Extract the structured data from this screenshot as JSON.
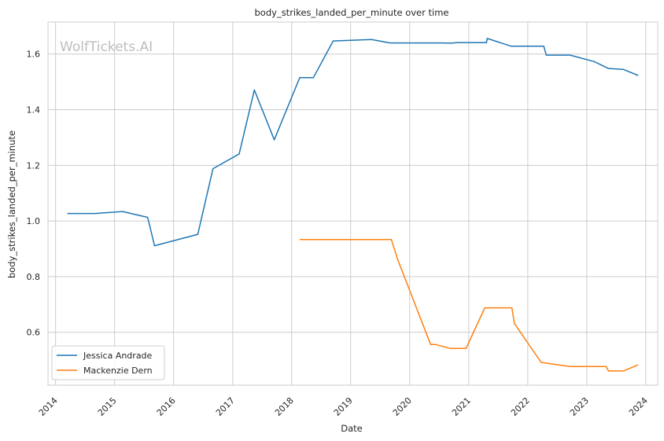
{
  "chart_data": {
    "type": "line",
    "title": "body_strikes_landed_per_minute over time",
    "xlabel": "Date",
    "ylabel": "body_strikes_landed_per_minute",
    "watermark": "WolfTickets.AI",
    "x_ticks": [
      "2014",
      "2015",
      "2016",
      "2017",
      "2018",
      "2019",
      "2020",
      "2021",
      "2022",
      "2023",
      "2024"
    ],
    "y_ticks": [
      "0.6",
      "0.8",
      "1.0",
      "1.2",
      "1.4",
      "1.6"
    ],
    "xlim": [
      "2013-11-15",
      "2024-03-15"
    ],
    "ylim": [
      0.41,
      1.715
    ],
    "grid": true,
    "legend_position": "lower-left",
    "series": [
      {
        "name": "Jessica Andrade",
        "color": "#1f77b4",
        "points": [
          [
            "2014-03-15",
            1.027
          ],
          [
            "2014-09-01",
            1.027
          ],
          [
            "2015-02-20",
            1.034
          ],
          [
            "2015-07-25",
            1.013
          ],
          [
            "2015-09-05",
            0.911
          ],
          [
            "2016-05-30",
            0.952
          ],
          [
            "2016-09-01",
            1.188
          ],
          [
            "2017-02-10",
            1.241
          ],
          [
            "2017-05-15",
            1.471
          ],
          [
            "2017-09-15",
            1.292
          ],
          [
            "2018-02-20",
            1.515
          ],
          [
            "2018-05-15",
            1.515
          ],
          [
            "2018-09-15",
            1.647
          ],
          [
            "2019-05-10",
            1.652
          ],
          [
            "2019-09-01",
            1.64
          ],
          [
            "2020-07-15",
            1.64
          ],
          [
            "2020-09-10",
            1.639
          ],
          [
            "2020-10-20",
            1.641
          ],
          [
            "2021-04-20",
            1.641
          ],
          [
            "2021-04-25",
            1.656
          ],
          [
            "2021-09-20",
            1.628
          ],
          [
            "2022-04-10",
            1.628
          ],
          [
            "2022-04-25",
            1.596
          ],
          [
            "2022-09-20",
            1.596
          ],
          [
            "2023-02-15",
            1.573
          ],
          [
            "2023-05-15",
            1.548
          ],
          [
            "2023-08-15",
            1.545
          ],
          [
            "2023-11-15",
            1.523
          ]
        ]
      },
      {
        "name": "Mackenzie Dern",
        "color": "#ff7f0e",
        "points": [
          [
            "2018-02-20",
            0.933
          ],
          [
            "2019-09-10",
            0.933
          ],
          [
            "2019-10-20",
            0.86
          ],
          [
            "2020-05-10",
            0.556
          ],
          [
            "2020-06-10",
            0.556
          ],
          [
            "2020-09-10",
            0.542
          ],
          [
            "2020-12-15",
            0.542
          ],
          [
            "2021-04-10",
            0.688
          ],
          [
            "2021-09-25",
            0.688
          ],
          [
            "2021-10-10",
            0.632
          ],
          [
            "2022-03-25",
            0.492
          ],
          [
            "2022-09-20",
            0.477
          ],
          [
            "2023-05-01",
            0.477
          ],
          [
            "2023-05-15",
            0.461
          ],
          [
            "2023-08-15",
            0.461
          ],
          [
            "2023-11-15",
            0.483
          ]
        ]
      }
    ]
  }
}
